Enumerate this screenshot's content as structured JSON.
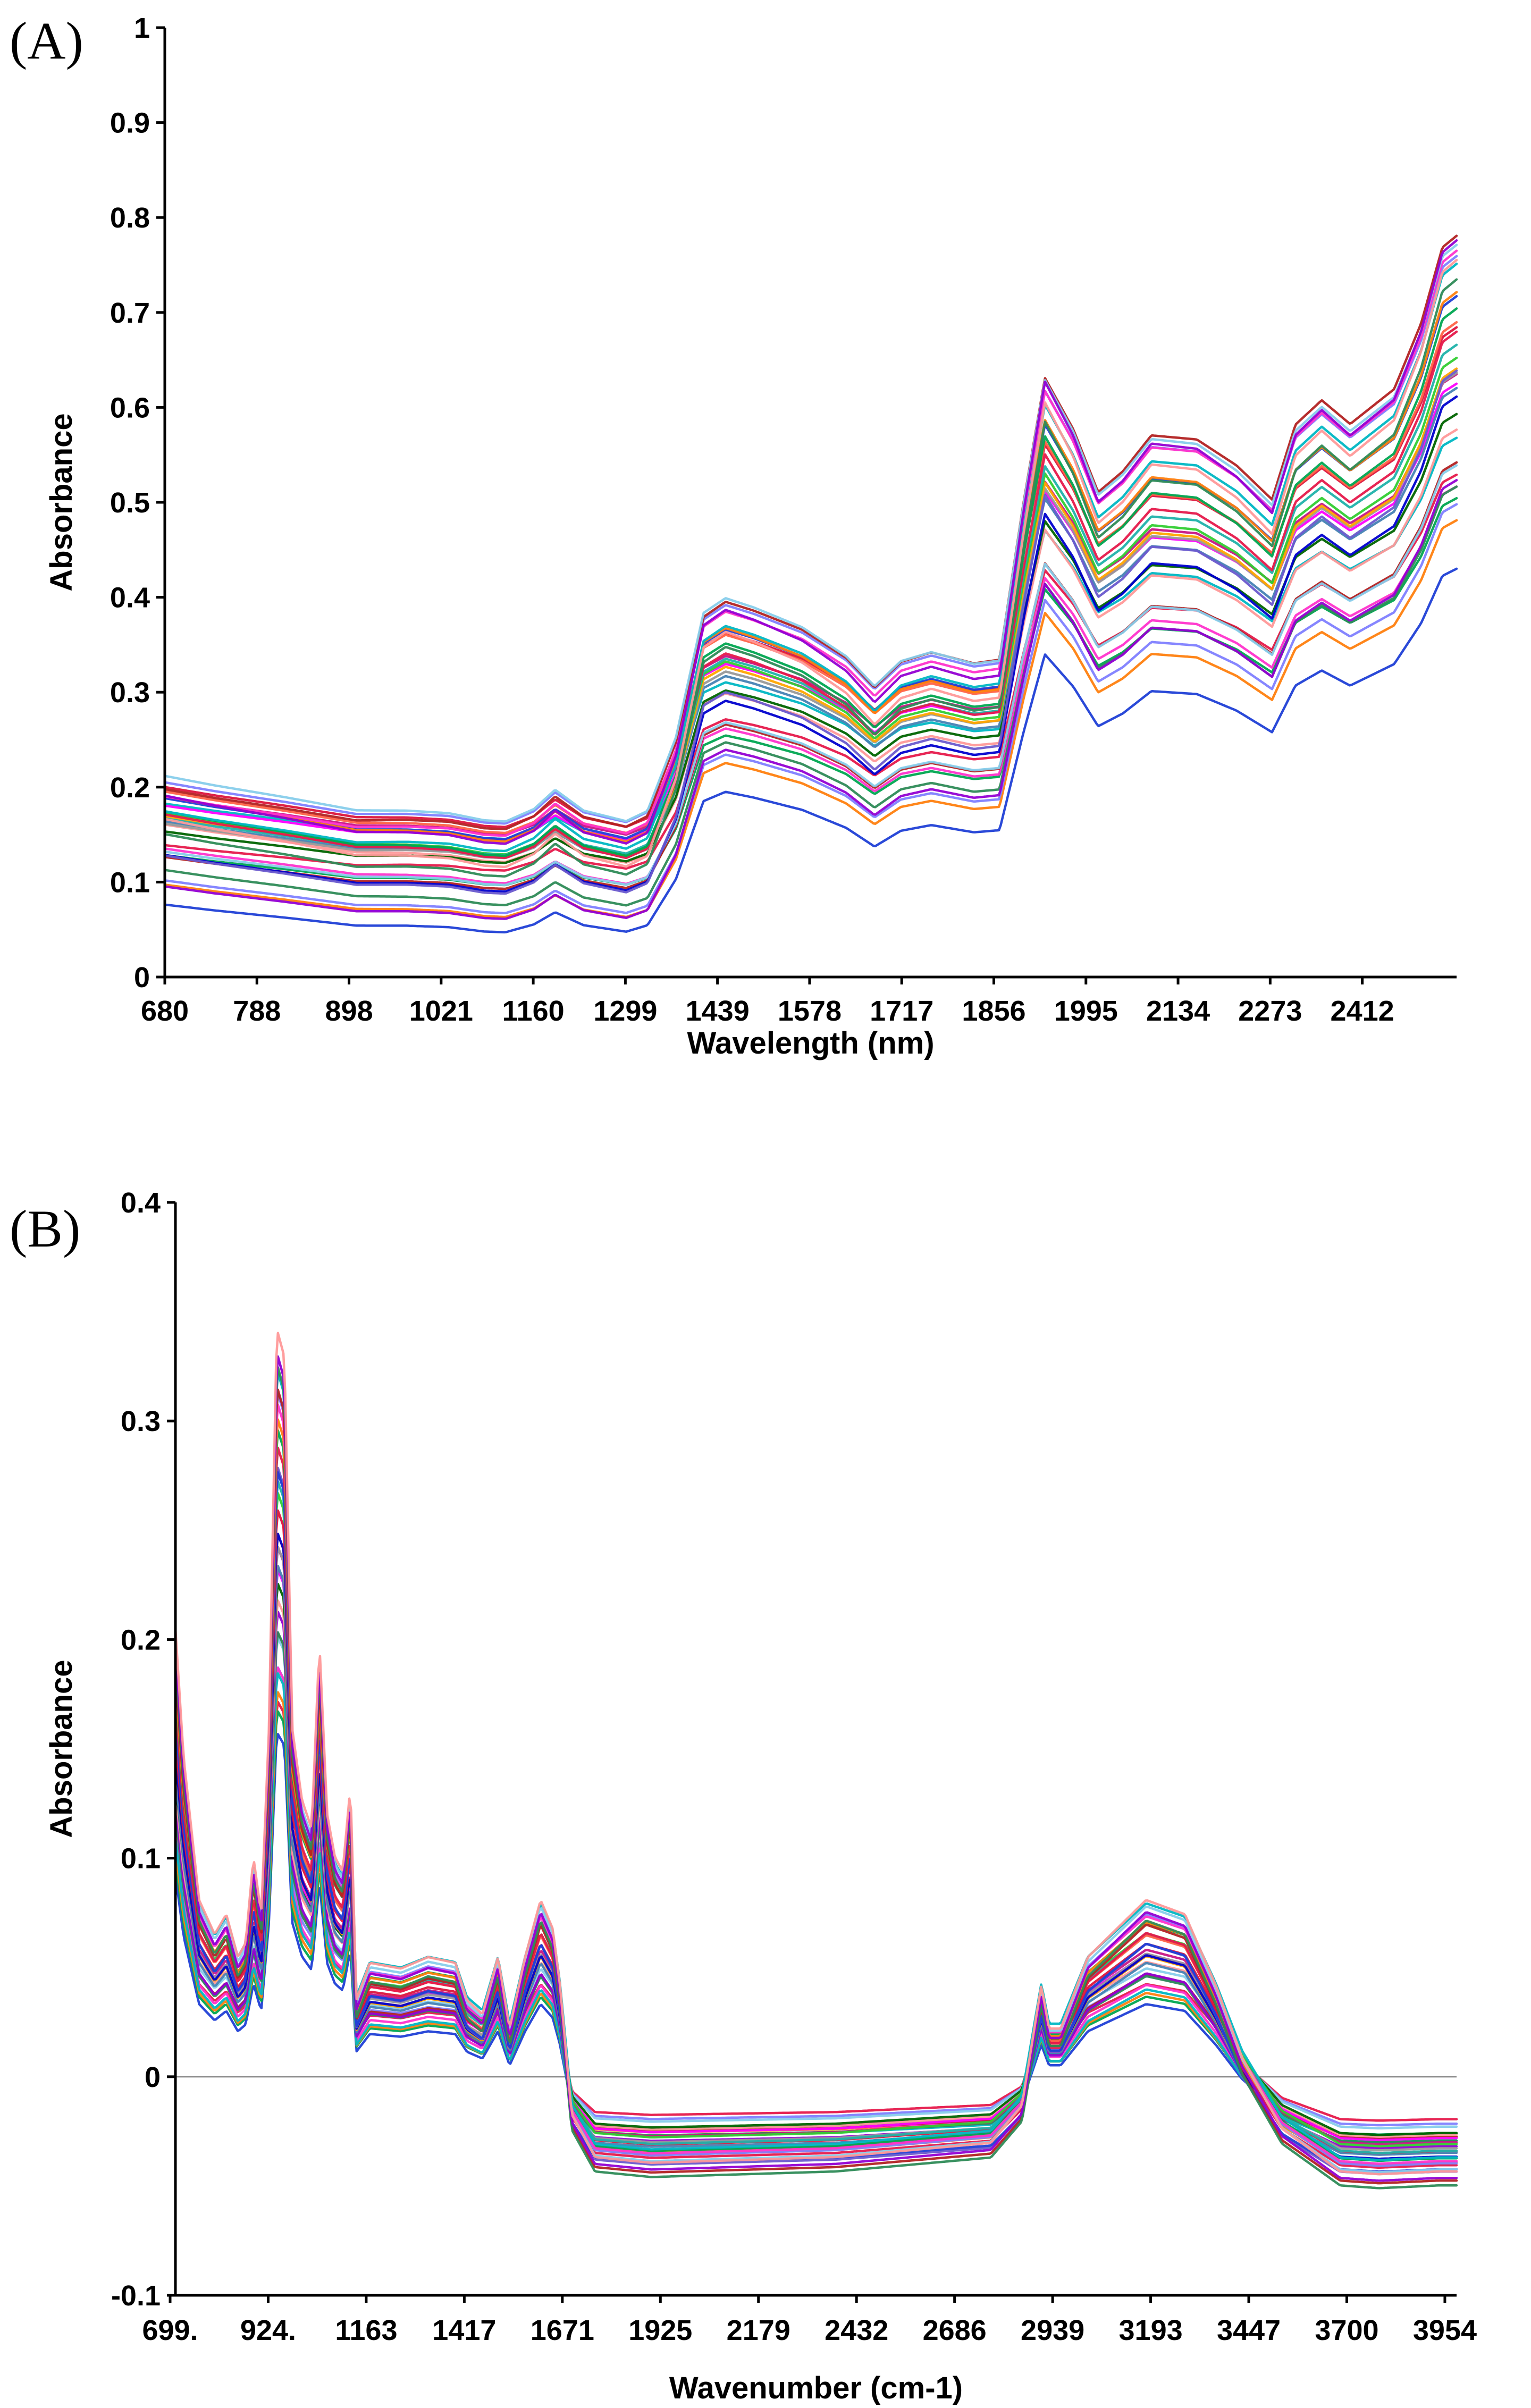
{
  "chart_data": [
    {
      "panel": "(A)",
      "type": "line",
      "title": "",
      "xlabel": "Wavelength (nm)",
      "ylabel": "Absorbance",
      "x_tick_labels": [
        "680",
        "788",
        "898",
        "1021",
        "1160",
        "1299",
        "1439",
        "1578",
        "1717",
        "1856",
        "1995",
        "2134",
        "2273",
        "2412"
      ],
      "xlim": [
        680,
        2500
      ],
      "y_ticks": [
        0,
        0.1,
        0.2,
        0.3,
        0.4,
        0.5,
        0.6,
        0.7,
        0.8,
        0.9,
        1
      ],
      "y_tick_labels": [
        "0",
        "0.1",
        "0.2",
        "0.3",
        "0.4",
        "0.5",
        "0.6",
        "0.7",
        "0.8",
        "0.9",
        "1"
      ],
      "ylim": [
        0,
        1
      ],
      "grid": false,
      "series_count": 36,
      "colors": [
        "#1f3fd6",
        "#e6194b",
        "#00a651",
        "#ff7f0e",
        "#8080ff",
        "#ff33cc",
        "#00b7c3",
        "#b22222",
        "#87ceeb",
        "#2e8b57",
        "#9400d3",
        "#ff9999",
        "#006400",
        "#ff00ff",
        "#4682b4",
        "#c71585",
        "#999999",
        "#ffa500",
        "#0000cd",
        "#32cd32",
        "#dc143c",
        "#20b2aa",
        "#ff6347",
        "#6a5acd"
      ],
      "template": {
        "x": [
          680,
          750,
          850,
          950,
          1021,
          1080,
          1130,
          1160,
          1200,
          1230,
          1270,
          1330,
          1360,
          1400,
          1439,
          1470,
          1510,
          1578,
          1640,
          1680,
          1717,
          1760,
          1820,
          1856,
          1890,
          1920,
          1960,
          1995,
          2030,
          2070,
          2134,
          2190,
          2240,
          2273,
          2310,
          2350,
          2412,
          2450,
          2480,
          2500
        ],
        "y": [
          0.15,
          0.142,
          0.132,
          0.121,
          0.121,
          0.119,
          0.113,
          0.112,
          0.123,
          0.14,
          0.122,
          0.113,
          0.122,
          0.186,
          0.295,
          0.308,
          0.3,
          0.283,
          0.258,
          0.232,
          0.254,
          0.262,
          0.252,
          0.255,
          0.392,
          0.5,
          0.455,
          0.4,
          0.418,
          0.449,
          0.445,
          0.422,
          0.392,
          0.457,
          0.478,
          0.457,
          0.487,
          0.544,
          0.61,
          0.62
        ]
      },
      "scale_range": [
        0.78,
        1.26
      ],
      "offset_range": [
        -0.04,
        0.04
      ]
    },
    {
      "panel": "(B)",
      "type": "line",
      "title": "",
      "xlabel": "Wavenumber (cm-1)",
      "ylabel": "Absorbance",
      "x_tick_labels": [
        "699.",
        "924.",
        "1163",
        "1417",
        "1671",
        "1925",
        "2179",
        "2432",
        "2686",
        "2939",
        "3193",
        "3447",
        "3700",
        "3954"
      ],
      "xlim": [
        699,
        4000
      ],
      "y_ticks": [
        -0.1,
        0,
        0.1,
        0.2,
        0.3,
        0.4
      ],
      "y_tick_labels": [
        "-0.1",
        "0",
        "0.1",
        "0.2",
        "0.3",
        "0.4"
      ],
      "ylim": [
        -0.1,
        0.4
      ],
      "grid": false,
      "zero_line": true,
      "series_count": 36,
      "colors": [
        "#1f3fd6",
        "#e6194b",
        "#00a651",
        "#ff7f0e",
        "#8080ff",
        "#ff33cc",
        "#00b7c3",
        "#b22222",
        "#87ceeb",
        "#2e8b57",
        "#9400d3",
        "#ff9999",
        "#006400",
        "#ff00ff",
        "#4682b4",
        "#c71585",
        "#999999",
        "#ffa500",
        "#0000cd",
        "#32cd32",
        "#dc143c",
        "#20b2aa",
        "#ff6347",
        "#6a5acd"
      ],
      "template": {
        "x": [
          699,
          720,
          760,
          800,
          830,
          860,
          880,
          900,
          920,
          940,
          960,
          980,
          1000,
          1025,
          1050,
          1070,
          1090,
          1110,
          1130,
          1150,
          1165,
          1200,
          1280,
          1350,
          1420,
          1450,
          1490,
          1530,
          1560,
          1600,
          1640,
          1671,
          1690,
          1720,
          1780,
          1925,
          2400,
          2800,
          2880,
          2930,
          2950,
          2980,
          3050,
          3200,
          3300,
          3380,
          3447,
          3550,
          3700,
          3800,
          3954,
          4000
        ],
        "y": [
          0.155,
          0.11,
          0.06,
          0.048,
          0.055,
          0.04,
          0.045,
          0.075,
          0.055,
          0.12,
          0.26,
          0.25,
          0.12,
          0.095,
          0.085,
          0.15,
          0.09,
          0.075,
          0.07,
          0.1,
          0.025,
          0.038,
          0.036,
          0.04,
          0.038,
          0.025,
          0.02,
          0.04,
          0.015,
          0.04,
          0.06,
          0.05,
          0.03,
          -0.015,
          -0.03,
          -0.032,
          -0.03,
          -0.025,
          -0.012,
          0.03,
          0.015,
          0.015,
          0.04,
          0.06,
          0.055,
          0.03,
          0.005,
          -0.02,
          -0.035,
          -0.036,
          -0.035,
          -0.035
        ]
      },
      "scale_range": [
        0.62,
        1.32
      ],
      "offset_range": [
        -0.006,
        0.006
      ]
    }
  ]
}
